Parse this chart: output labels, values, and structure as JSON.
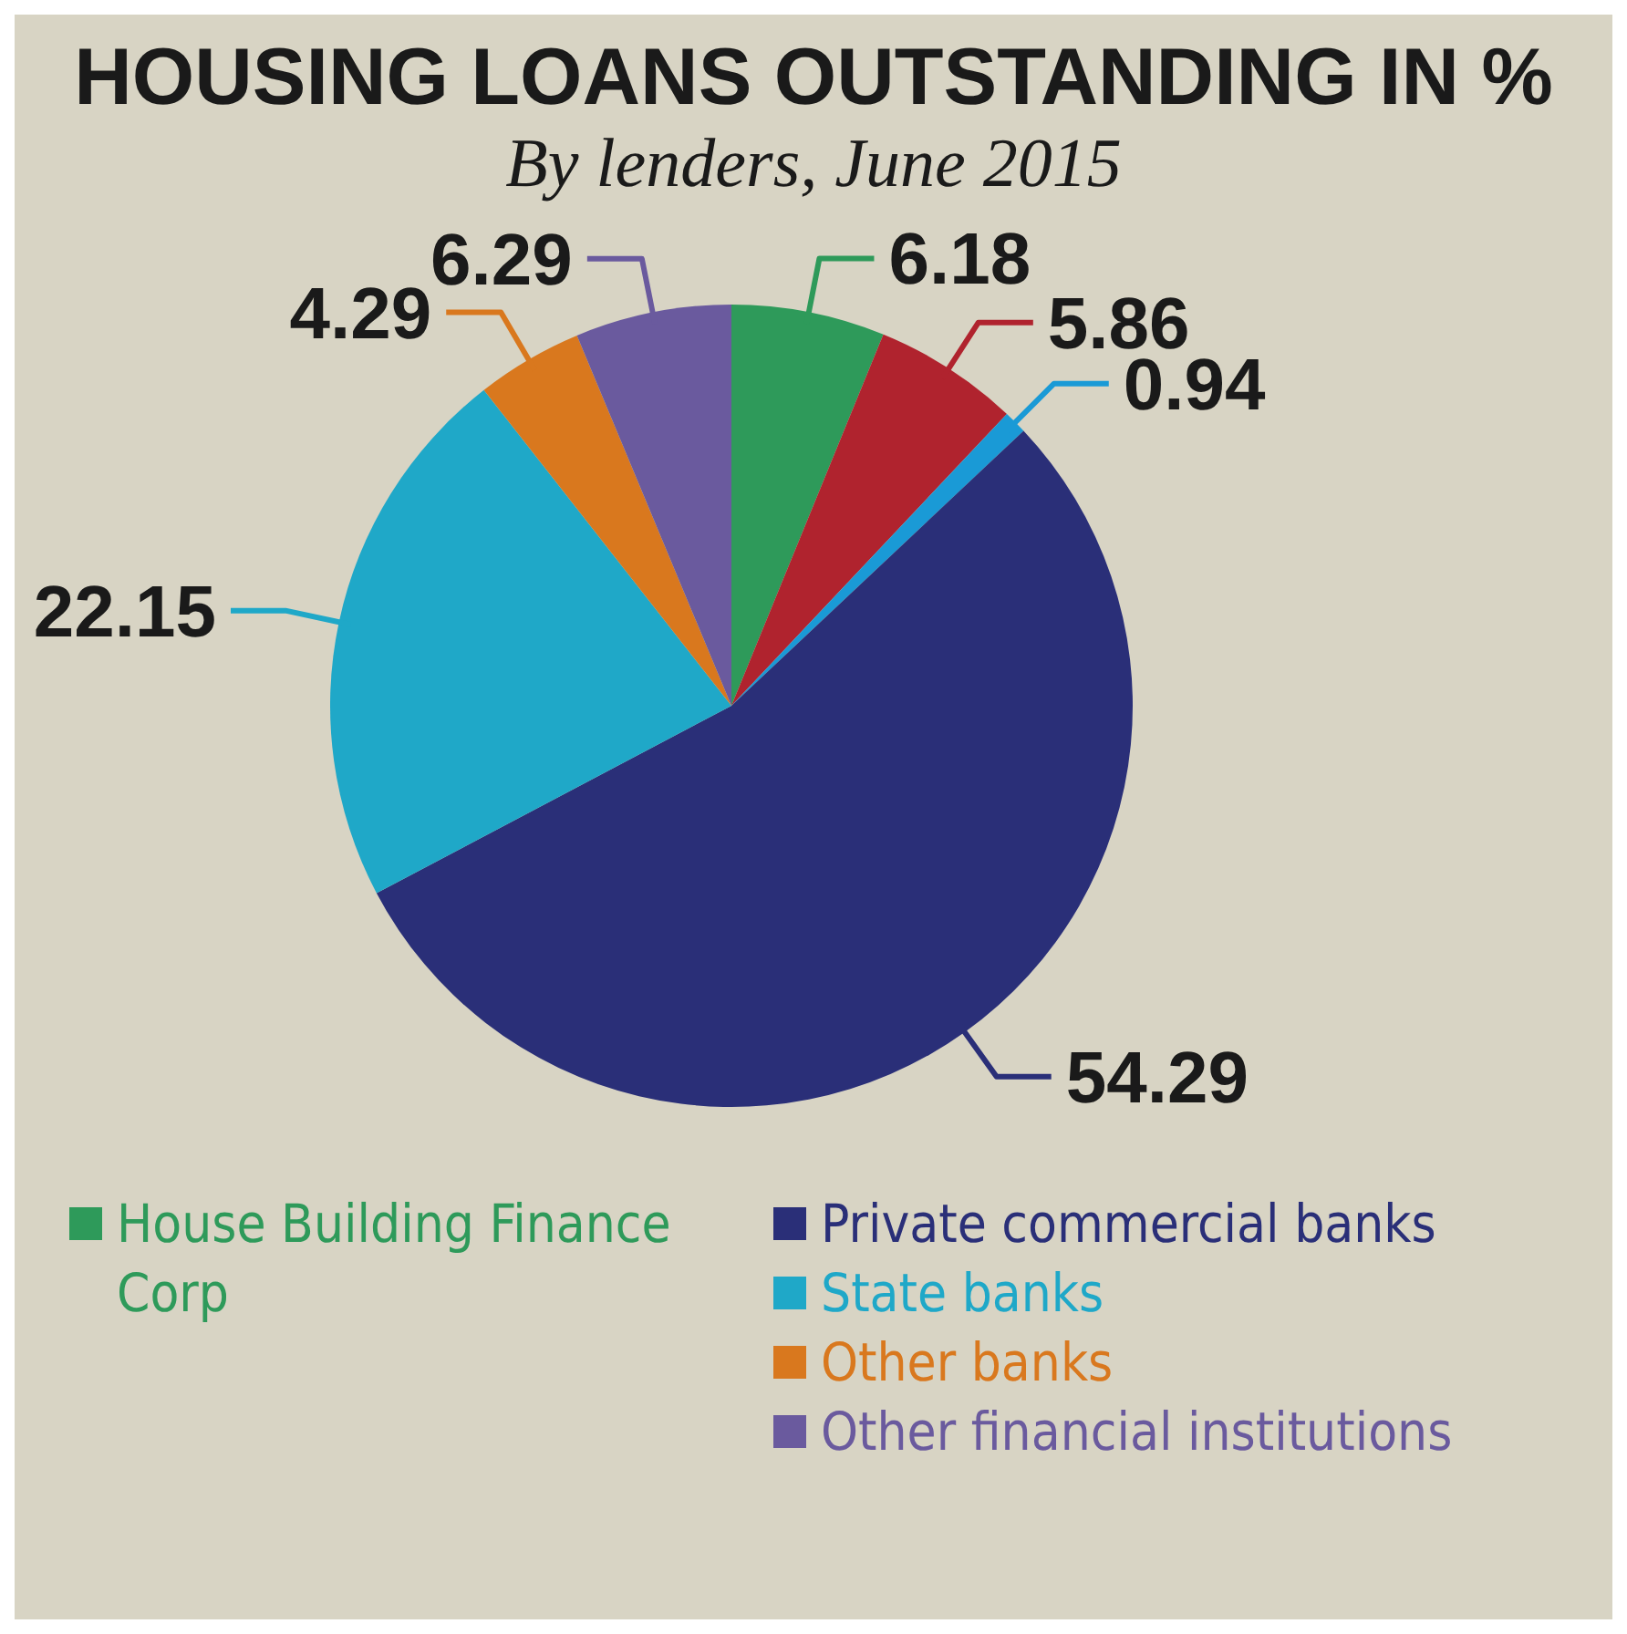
{
  "chart_data": {
    "type": "pie",
    "title": "HOUSING LOANS OUTSTANDING IN %",
    "subtitle": "By lenders, June 2015",
    "categories": [
      "House Building Finance Corp",
      null,
      null,
      "Private commercial banks",
      "State banks",
      "Other banks",
      "Other financial institutions"
    ],
    "values": [
      6.18,
      5.86,
      0.94,
      54.29,
      22.15,
      4.29,
      6.29
    ],
    "colors": [
      "#2e9a5a",
      "#b0232e",
      "#1a9ad6",
      "#2a2f78",
      "#1fa8c8",
      "#d9781e",
      "#6a5a9e"
    ],
    "data_labels": true,
    "legend": "bottom"
  }
}
